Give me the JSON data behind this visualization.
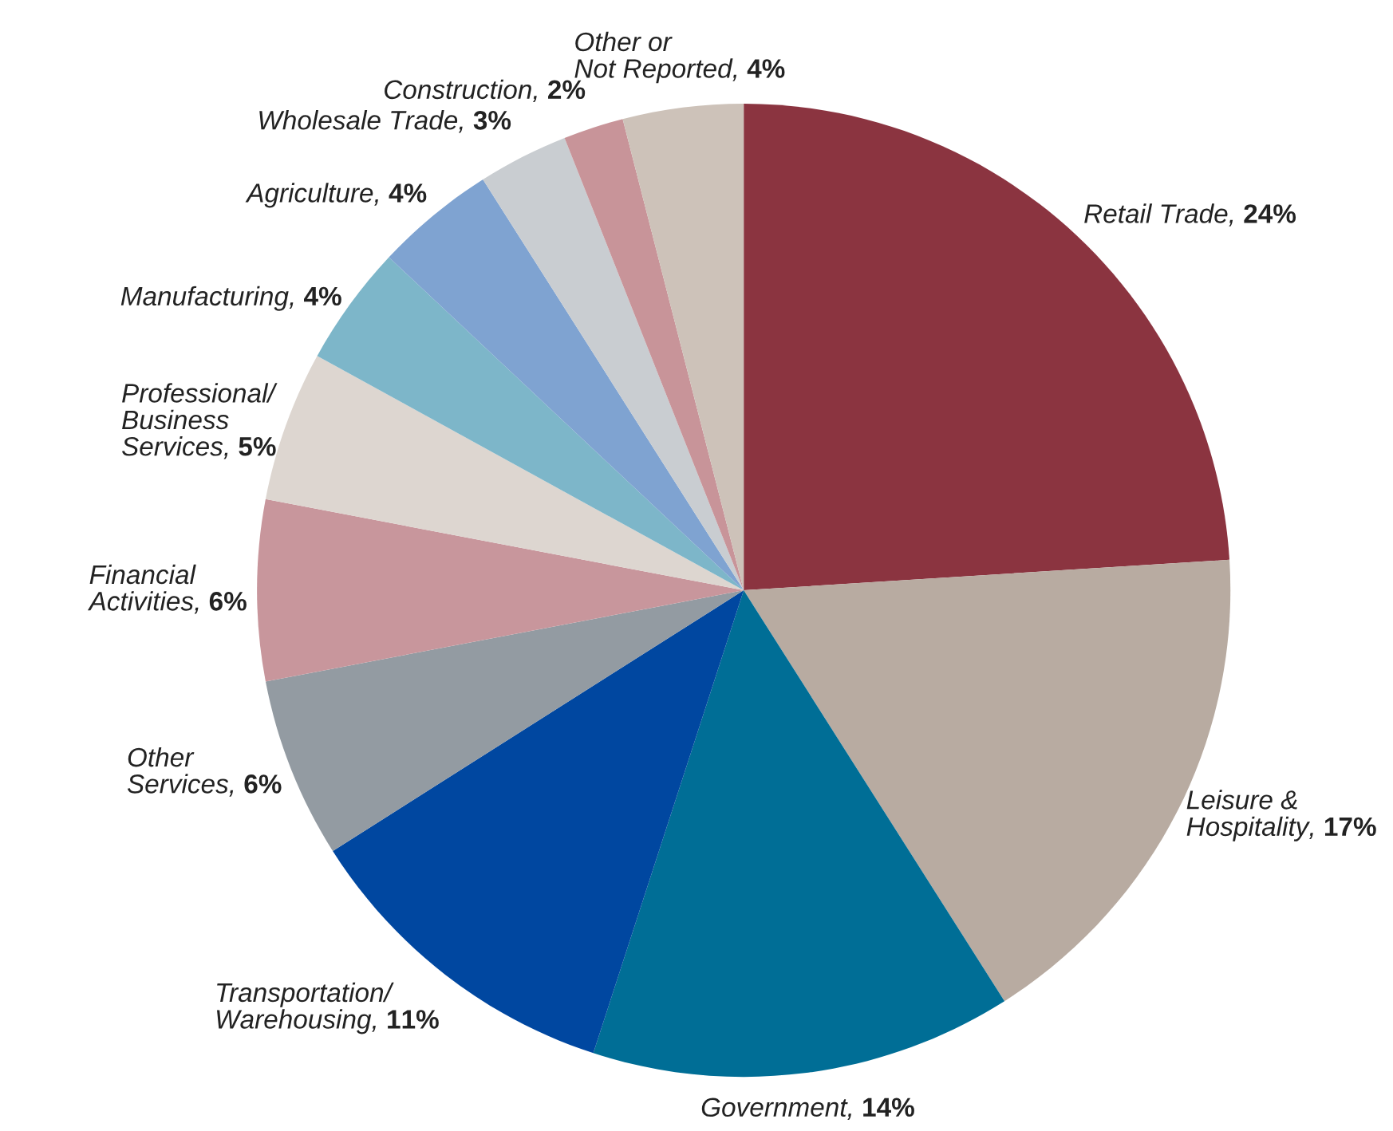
{
  "chart_data": {
    "type": "pie",
    "categories": [
      "Retail Trade",
      "Leisure &\nHospitality",
      "Government",
      "Transportation/\nWarehousing",
      "Other\nServices",
      "Financial\nActivities",
      "Professional/\nBusiness\nServices",
      "Manufacturing",
      "Agriculture",
      "Wholesale Trade",
      "Construction",
      "Other or\nNot Reported"
    ],
    "values": [
      24,
      17,
      14,
      11,
      6,
      6,
      5,
      4,
      4,
      3,
      2,
      4
    ],
    "colors": [
      "#8b3440",
      "#b8aba1",
      "#006e96",
      "#0047a0",
      "#939ba2",
      "#c8969c",
      "#ddd6d0",
      "#7db6c9",
      "#7fa3d1",
      "#c9cdd1",
      "#c89499",
      "#cdc2b9"
    ],
    "value_labels": [
      "24%",
      "17%",
      "14%",
      "11%",
      "6%",
      "6%",
      "5%",
      "4%",
      "4%",
      "3%",
      "2%",
      "4%"
    ]
  }
}
